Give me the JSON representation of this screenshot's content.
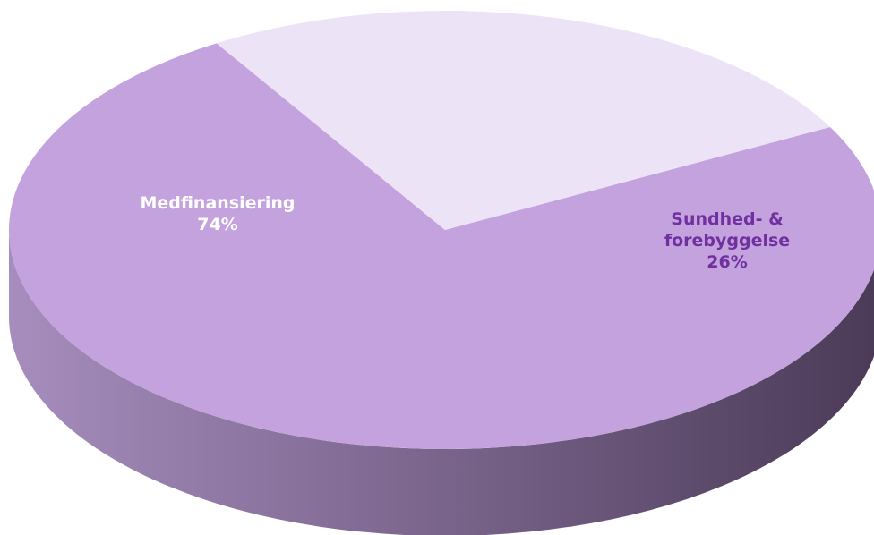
{
  "chart_data": {
    "type": "pie",
    "style": "3d",
    "title": "",
    "slices": [
      {
        "name": "Medfinansiering",
        "value": 74,
        "label_lines": [
          "Medfinansiering",
          "74%"
        ],
        "color": "#c3a2de",
        "label_color": "#ffffff"
      },
      {
        "name": "Sundhed- & forebyggelse",
        "value": 26,
        "label_lines": [
          "Sundhed- &",
          "forebyggelse",
          "26%"
        ],
        "color": "#ede3f7",
        "label_color": "#7030a0"
      }
    ],
    "legend": "none"
  }
}
